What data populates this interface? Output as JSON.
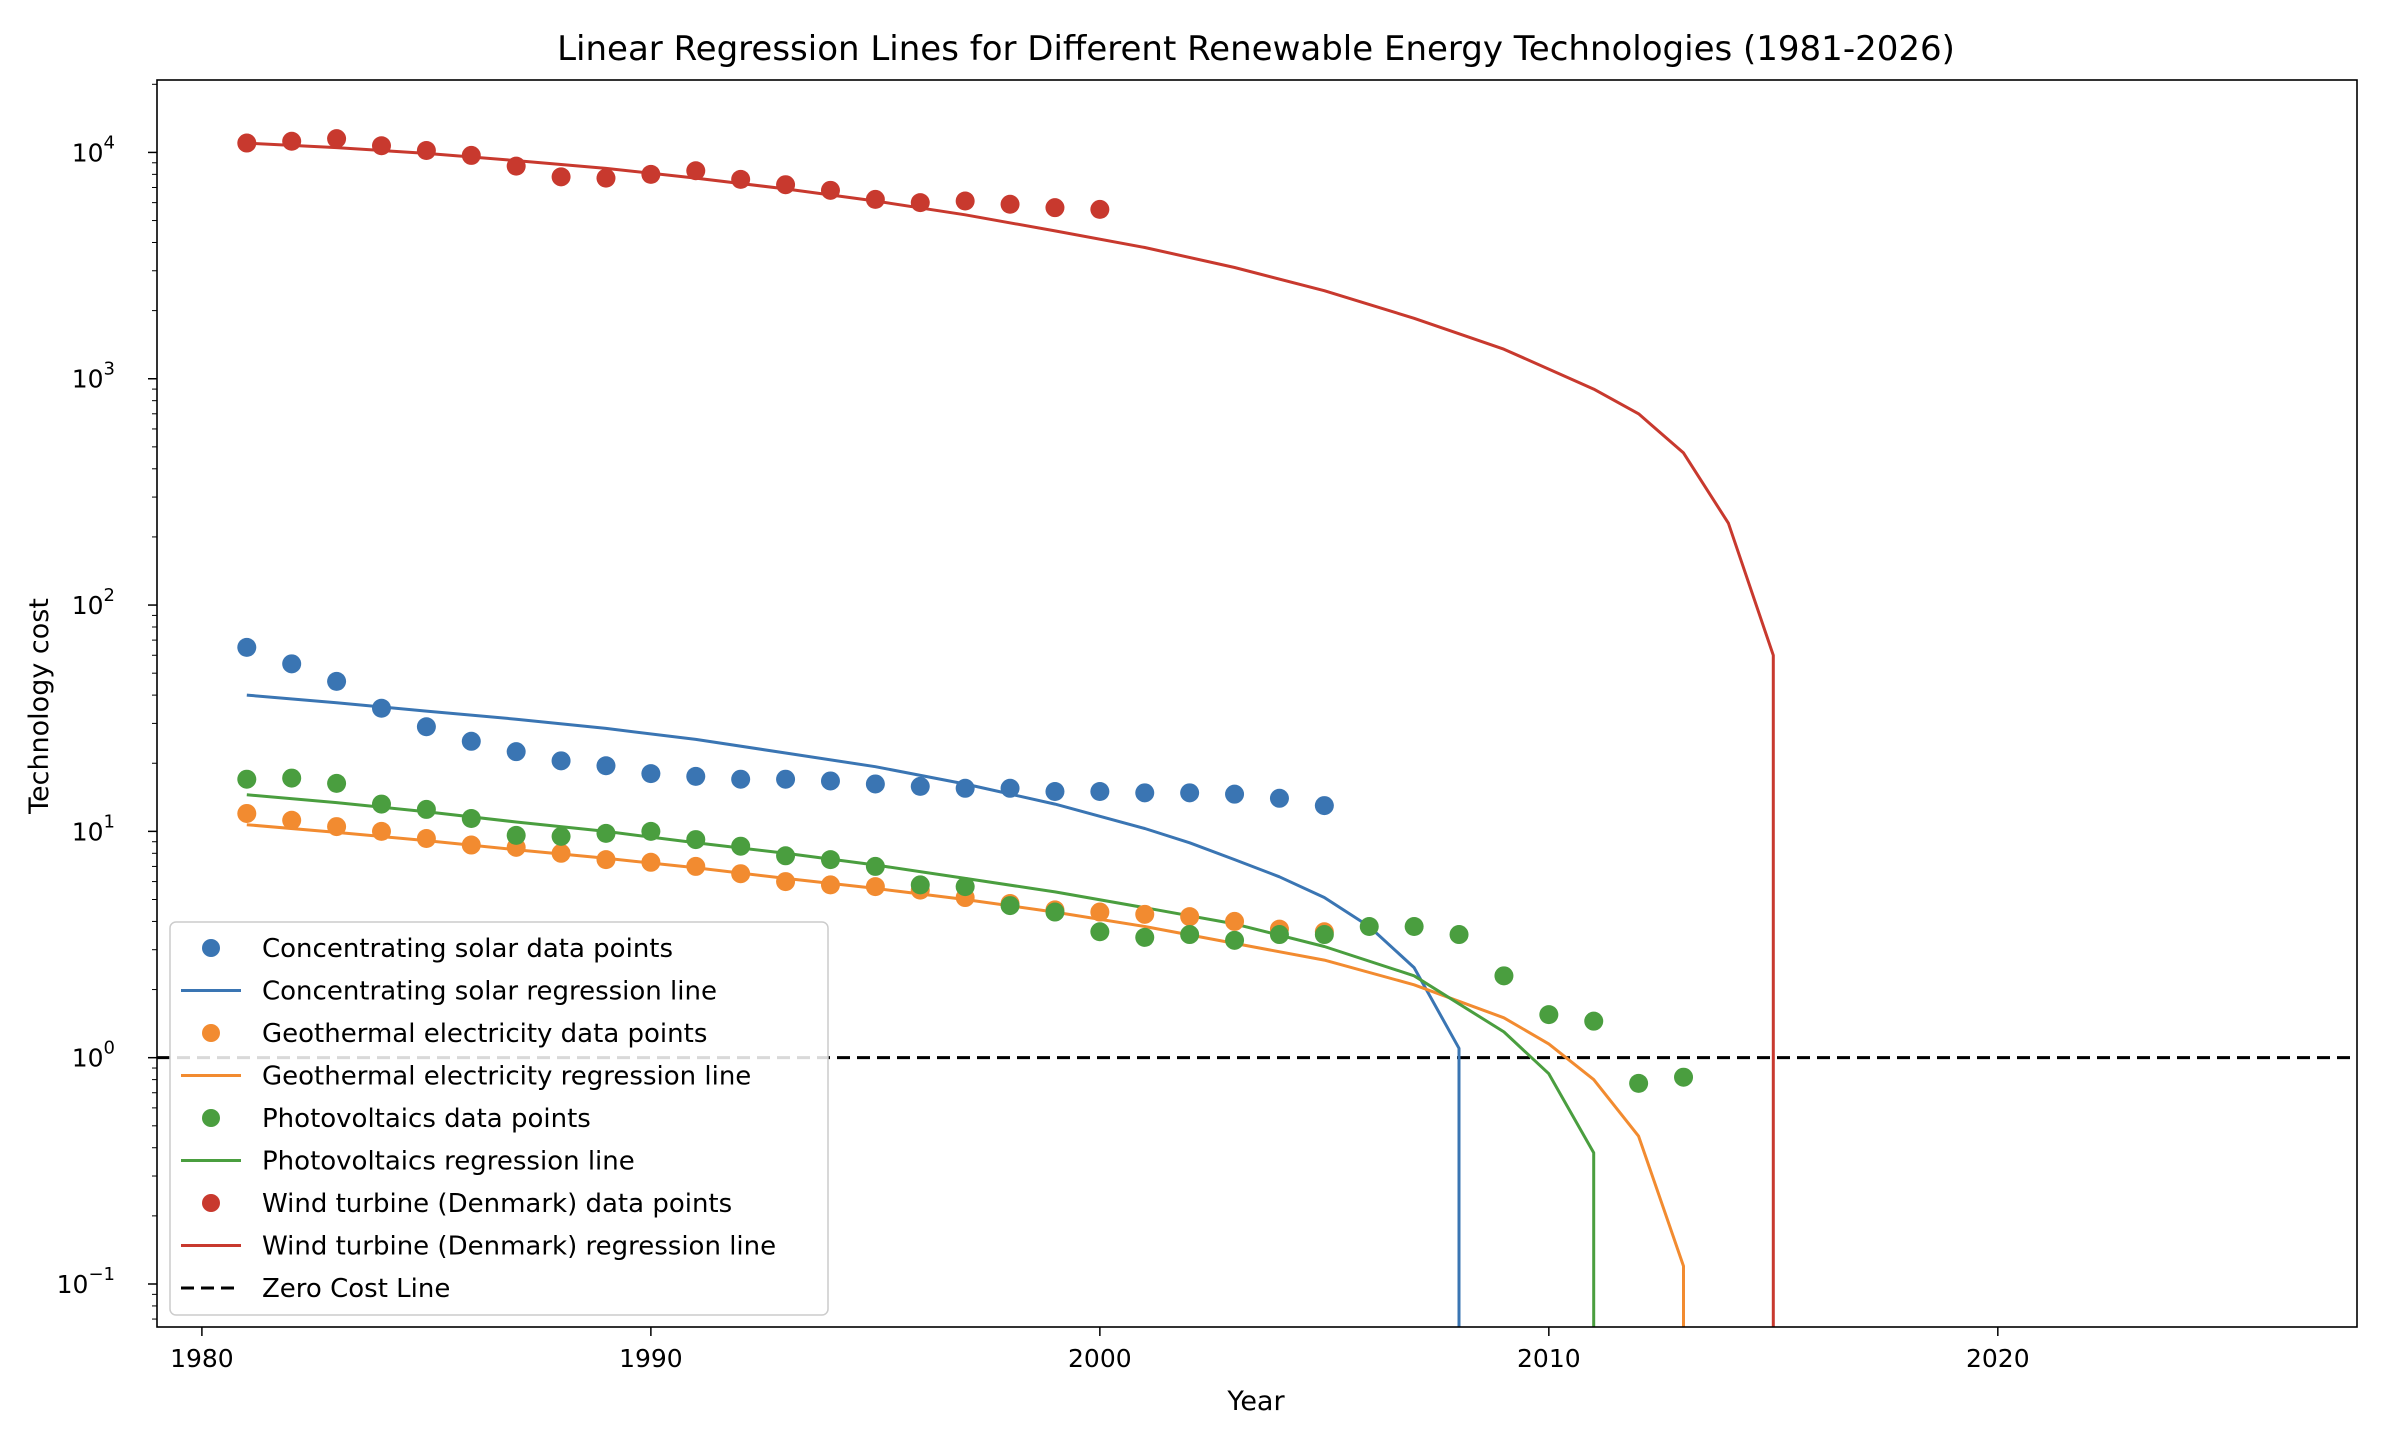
{
  "chart_data": {
    "type": "scatter",
    "title": "Linear Regression Lines for Different Renewable Energy Technologies (1981-2026)",
    "xlabel": "Year",
    "ylabel": "Technology cost",
    "xlim": [
      1979,
      2028
    ],
    "ylim_log10": [
      -1.19,
      4.32
    ],
    "yscale": "log",
    "grid": false,
    "legend_position": "lower-left",
    "x_ticks": [
      1980,
      1990,
      2000,
      2010,
      2020
    ],
    "x_tick_labels": [
      "1980",
      "1990",
      "2000",
      "2010",
      "2020"
    ],
    "y_ticks": [
      -1,
      0,
      1,
      2,
      3,
      4
    ],
    "y_tick_bases": [
      "10",
      "10",
      "10",
      "10",
      "10",
      "10"
    ],
    "y_tick_exponents": [
      "−1",
      "0",
      "1",
      "2",
      "3",
      "4"
    ],
    "reference_line": {
      "name": "Zero Cost Line",
      "y": 1,
      "color": "#000000",
      "style": "dashed"
    },
    "series": [
      {
        "name": "Concentrating solar data points",
        "kind": "scatter",
        "color": "#3a75b3",
        "x": [
          1981,
          1982,
          1983,
          1984,
          1985,
          1986,
          1987,
          1988,
          1989,
          1990,
          1991,
          1992,
          1993,
          1994,
          1995,
          1996,
          1997,
          1998,
          1999,
          2000,
          2001,
          2002,
          2003,
          2004,
          2005
        ],
        "y": [
          65,
          55,
          46,
          35,
          29,
          25,
          22.5,
          20.5,
          19.5,
          18,
          17.5,
          17,
          17,
          16.7,
          16.2,
          15.8,
          15.5,
          15.5,
          15,
          15,
          14.8,
          14.8,
          14.6,
          14,
          13
        ]
      },
      {
        "name": "Concentrating solar regression line",
        "kind": "line",
        "color": "#3a75b3",
        "x": [
          1981,
          1983,
          1985,
          1987,
          1989,
          1991,
          1993,
          1995,
          1997,
          1999,
          2001,
          2002,
          2003,
          2004,
          2005,
          2006,
          2007,
          2008,
          2008
        ],
        "y": [
          40,
          37,
          34,
          31.3,
          28.5,
          25.5,
          22.2,
          19.3,
          16.2,
          13.2,
          10.3,
          8.9,
          7.5,
          6.3,
          5.1,
          3.8,
          2.5,
          1.1,
          0.06
        ]
      },
      {
        "name": "Geothermal electricity data points",
        "kind": "scatter",
        "color": "#f28b30",
        "x": [
          1981,
          1982,
          1983,
          1984,
          1985,
          1986,
          1987,
          1988,
          1989,
          1990,
          1991,
          1992,
          1993,
          1994,
          1995,
          1996,
          1997,
          1998,
          1999,
          2000,
          2001,
          2002,
          2003,
          2004,
          2005
        ],
        "y": [
          12,
          11.2,
          10.5,
          10,
          9.3,
          8.7,
          8.5,
          8,
          7.5,
          7.3,
          7,
          6.5,
          6,
          5.8,
          5.7,
          5.5,
          5.1,
          4.8,
          4.5,
          4.4,
          4.3,
          4.2,
          4,
          3.7,
          3.6
        ]
      },
      {
        "name": "Geothermal electricity regression line",
        "kind": "line",
        "color": "#f28b30",
        "x": [
          1981,
          1983,
          1985,
          1987,
          1989,
          1991,
          1993,
          1995,
          1997,
          1999,
          2001,
          2003,
          2005,
          2007,
          2009,
          2010,
          2011,
          2012,
          2013,
          2013
        ],
        "y": [
          10.7,
          9.9,
          9.1,
          8.3,
          7.6,
          6.9,
          6.2,
          5.6,
          5,
          4.4,
          3.8,
          3.2,
          2.7,
          2.1,
          1.5,
          1.15,
          0.8,
          0.45,
          0.12,
          0.06
        ]
      },
      {
        "name": "Photovoltaics data points",
        "kind": "scatter",
        "color": "#4a9e3f",
        "x": [
          1981,
          1982,
          1983,
          1984,
          1985,
          1986,
          1987,
          1988,
          1989,
          1990,
          1991,
          1992,
          1993,
          1994,
          1995,
          1996,
          1997,
          1998,
          1999,
          2000,
          2001,
          2002,
          2003,
          2004,
          2005,
          2006,
          2007,
          2008,
          2009,
          2010,
          2011,
          2012,
          2013
        ],
        "y": [
          17,
          17.2,
          16.3,
          13.2,
          12.5,
          11.4,
          9.6,
          9.5,
          9.8,
          10,
          9.2,
          8.6,
          7.8,
          7.5,
          7,
          5.8,
          5.7,
          4.7,
          4.4,
          3.6,
          3.4,
          3.5,
          3.3,
          3.5,
          3.5,
          3.8,
          3.8,
          3.5,
          2.3,
          1.55,
          1.45,
          0.77,
          0.82
        ]
      },
      {
        "name": "Photovoltaics regression line",
        "kind": "line",
        "color": "#4a9e3f",
        "x": [
          1981,
          1983,
          1985,
          1987,
          1989,
          1991,
          1993,
          1995,
          1997,
          1999,
          2001,
          2003,
          2005,
          2007,
          2009,
          2010,
          2011,
          2011
        ],
        "y": [
          14.5,
          13.4,
          12.2,
          11,
          10,
          8.9,
          8,
          7.1,
          6.2,
          5.4,
          4.6,
          3.9,
          3.1,
          2.3,
          1.3,
          0.85,
          0.38,
          0.06
        ]
      },
      {
        "name": "Wind turbine (Denmark) data points",
        "kind": "scatter",
        "color": "#c8392e",
        "x": [
          1981,
          1982,
          1983,
          1984,
          1985,
          1986,
          1987,
          1988,
          1989,
          1990,
          1991,
          1992,
          1993,
          1994,
          1995,
          1996,
          1997,
          1998,
          1999,
          2000
        ],
        "y": [
          11000,
          11200,
          11500,
          10700,
          10200,
          9700,
          8700,
          7800,
          7700,
          8000,
          8300,
          7600,
          7200,
          6800,
          6200,
          6000,
          6100,
          5900,
          5700,
          5600
        ]
      },
      {
        "name": "Wind turbine (Denmark) regression line",
        "kind": "line",
        "color": "#c8392e",
        "x": [
          1981,
          1983,
          1985,
          1987,
          1989,
          1991,
          1993,
          1995,
          1997,
          1999,
          2001,
          2003,
          2005,
          2007,
          2009,
          2011,
          2012,
          2013,
          2014,
          2015,
          2015
        ],
        "y": [
          11000,
          10500,
          9900,
          9200,
          8500,
          7700,
          6900,
          6100,
          5300,
          4500,
          3800,
          3100,
          2450,
          1850,
          1350,
          900,
          700,
          470,
          230,
          60,
          0.06
        ]
      }
    ]
  },
  "legend": {
    "entries": [
      {
        "label": "Concentrating solar data points",
        "kind": "marker",
        "color": "#3a75b3"
      },
      {
        "label": "Concentrating solar regression line",
        "kind": "line",
        "color": "#3a75b3"
      },
      {
        "label": "Geothermal electricity data points",
        "kind": "marker",
        "color": "#f28b30"
      },
      {
        "label": "Geothermal electricity regression line",
        "kind": "line",
        "color": "#f28b30"
      },
      {
        "label": "Photovoltaics data points",
        "kind": "marker",
        "color": "#4a9e3f"
      },
      {
        "label": "Photovoltaics regression line",
        "kind": "line",
        "color": "#4a9e3f"
      },
      {
        "label": "Wind turbine (Denmark) data points",
        "kind": "marker",
        "color": "#c8392e"
      },
      {
        "label": "Wind turbine (Denmark) regression line",
        "kind": "line",
        "color": "#c8392e"
      },
      {
        "label": "Zero Cost Line",
        "kind": "dashed",
        "color": "#000000"
      }
    ]
  }
}
